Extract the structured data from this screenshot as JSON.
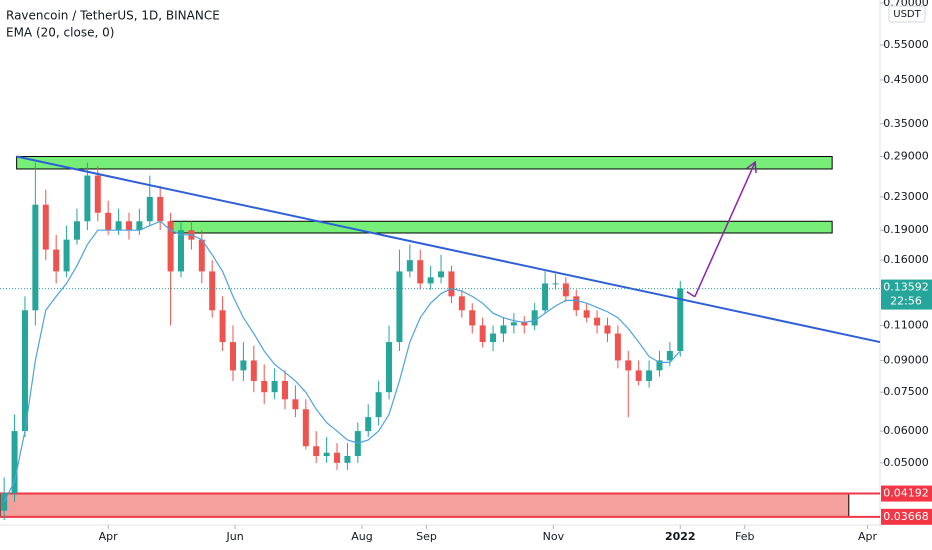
{
  "chart_data": {
    "type": "candlestick",
    "title": "Ravencoin / TetherUS, 1D, BINANCE",
    "up_color": "#26a69a",
    "down_color": "#ef5350",
    "x": [
      40,
      45,
      50,
      55,
      60,
      65,
      70,
      75,
      80,
      85,
      90,
      95,
      100,
      105,
      110,
      115,
      120,
      125,
      130,
      135,
      140,
      145,
      150,
      155,
      160,
      165,
      170,
      175,
      180,
      185,
      190,
      195,
      200,
      205,
      210,
      215,
      220,
      225,
      230,
      235,
      240,
      245,
      250,
      255,
      260,
      265,
      270,
      275,
      280,
      285,
      290,
      295,
      300,
      305,
      310,
      315,
      320,
      325,
      330,
      335,
      340,
      345,
      350,
      355,
      360,
      365
    ],
    "open": [
      0.038,
      0.042,
      0.06,
      0.12,
      0.22,
      0.17,
      0.15,
      0.18,
      0.2,
      0.26,
      0.21,
      0.19,
      0.2,
      0.19,
      0.2,
      0.23,
      0.2,
      0.15,
      0.19,
      0.18,
      0.15,
      0.12,
      0.1,
      0.085,
      0.09,
      0.08,
      0.075,
      0.08,
      0.072,
      0.068,
      0.055,
      0.052,
      0.053,
      0.05,
      0.052,
      0.06,
      0.065,
      0.075,
      0.1,
      0.15,
      0.16,
      0.14,
      0.145,
      0.15,
      0.13,
      0.12,
      0.11,
      0.1,
      0.105,
      0.11,
      0.112,
      0.11,
      0.12,
      0.14,
      0.14,
      0.13,
      0.12,
      0.115,
      0.11,
      0.105,
      0.09,
      0.085,
      0.08,
      0.085,
      0.09,
      0.095
    ],
    "high": [
      0.046,
      0.066,
      0.13,
      0.28,
      0.24,
      0.185,
      0.195,
      0.215,
      0.28,
      0.275,
      0.225,
      0.215,
      0.21,
      0.215,
      0.26,
      0.245,
      0.21,
      0.2,
      0.2,
      0.19,
      0.16,
      0.13,
      0.11,
      0.1,
      0.098,
      0.088,
      0.086,
      0.085,
      0.078,
      0.072,
      0.06,
      0.058,
      0.056,
      0.056,
      0.063,
      0.07,
      0.08,
      0.11,
      0.17,
      0.175,
      0.17,
      0.155,
      0.165,
      0.155,
      0.135,
      0.125,
      0.115,
      0.11,
      0.115,
      0.118,
      0.116,
      0.125,
      0.15,
      0.148,
      0.145,
      0.135,
      0.125,
      0.12,
      0.115,
      0.11,
      0.095,
      0.09,
      0.09,
      0.095,
      0.1,
      0.142
    ],
    "low": [
      0.036,
      0.04,
      0.058,
      0.11,
      0.16,
      0.14,
      0.145,
      0.175,
      0.19,
      0.2,
      0.185,
      0.185,
      0.18,
      0.185,
      0.195,
      0.19,
      0.11,
      0.145,
      0.17,
      0.14,
      0.115,
      0.095,
      0.08,
      0.08,
      0.075,
      0.07,
      0.072,
      0.068,
      0.065,
      0.054,
      0.05,
      0.05,
      0.048,
      0.048,
      0.05,
      0.058,
      0.062,
      0.072,
      0.095,
      0.145,
      0.135,
      0.135,
      0.14,
      0.125,
      0.115,
      0.105,
      0.097,
      0.095,
      0.1,
      0.105,
      0.105,
      0.107,
      0.118,
      0.135,
      0.126,
      0.116,
      0.112,
      0.105,
      0.1,
      0.086,
      0.065,
      0.078,
      0.077,
      0.082,
      0.087,
      0.092
    ],
    "close": [
      0.042,
      0.06,
      0.12,
      0.22,
      0.17,
      0.15,
      0.18,
      0.2,
      0.26,
      0.21,
      0.19,
      0.2,
      0.19,
      0.2,
      0.23,
      0.2,
      0.15,
      0.19,
      0.18,
      0.15,
      0.12,
      0.1,
      0.085,
      0.09,
      0.08,
      0.075,
      0.08,
      0.072,
      0.068,
      0.055,
      0.052,
      0.053,
      0.05,
      0.052,
      0.06,
      0.065,
      0.075,
      0.1,
      0.15,
      0.16,
      0.14,
      0.145,
      0.15,
      0.13,
      0.12,
      0.11,
      0.1,
      0.105,
      0.11,
      0.112,
      0.11,
      0.12,
      0.14,
      0.14,
      0.13,
      0.12,
      0.115,
      0.11,
      0.105,
      0.09,
      0.085,
      0.08,
      0.085,
      0.09,
      0.095,
      0.136
    ],
    "ema": {
      "name": "EMA (20, close, 0)",
      "color": "#4ea3dc",
      "values": [
        0.04,
        0.045,
        0.06,
        0.09,
        0.12,
        0.13,
        0.14,
        0.155,
        0.175,
        0.19,
        0.19,
        0.19,
        0.19,
        0.19,
        0.195,
        0.2,
        0.19,
        0.185,
        0.185,
        0.18,
        0.165,
        0.15,
        0.13,
        0.115,
        0.105,
        0.095,
        0.088,
        0.084,
        0.08,
        0.075,
        0.068,
        0.063,
        0.06,
        0.057,
        0.056,
        0.057,
        0.06,
        0.066,
        0.08,
        0.1,
        0.115,
        0.125,
        0.132,
        0.136,
        0.134,
        0.13,
        0.125,
        0.118,
        0.115,
        0.113,
        0.112,
        0.113,
        0.118,
        0.123,
        0.127,
        0.127,
        0.125,
        0.122,
        0.119,
        0.115,
        0.108,
        0.1,
        0.092,
        0.089,
        0.089,
        0.095
      ]
    },
    "xlim": [
      38,
      461
    ],
    "xticks": [
      {
        "value": 90,
        "label": "Apr"
      },
      {
        "value": 151,
        "label": "Jun"
      },
      {
        "value": 212,
        "label": "Aug"
      },
      {
        "value": 243,
        "label": "Sep"
      },
      {
        "value": 304,
        "label": "Nov"
      },
      {
        "value": 365,
        "label": "2022"
      },
      {
        "value": 396,
        "label": "Feb"
      },
      {
        "value": 455,
        "label": "Apr"
      }
    ],
    "ylim": [
      0.035,
      0.712
    ],
    "log_scale": true,
    "y_unit": "USDT",
    "yticks": [
      {
        "value": 0.7,
        "label": "0.70000"
      },
      {
        "value": 0.55,
        "label": "0.55000"
      },
      {
        "value": 0.45,
        "label": "0.45000"
      },
      {
        "value": 0.35,
        "label": "0.35000"
      },
      {
        "value": 0.29,
        "label": "0.29000"
      },
      {
        "value": 0.23,
        "label": "0.23000"
      },
      {
        "value": 0.19,
        "label": "0.19000"
      },
      {
        "value": 0.16,
        "label": "0.16000"
      },
      {
        "value": 0.11,
        "label": "0.11000"
      },
      {
        "value": 0.09,
        "label": "0.09000"
      },
      {
        "value": 0.075,
        "label": "0.07500"
      },
      {
        "value": 0.06,
        "label": "0.06000"
      },
      {
        "value": 0.05,
        "label": "0.05000"
      }
    ],
    "grid": false,
    "zones": [
      {
        "x": [
          46,
          438
        ],
        "y": [
          0.27,
          0.29
        ],
        "color": "#77ee77"
      },
      {
        "x": [
          120,
          438
        ],
        "y": [
          0.187,
          0.2
        ],
        "color": "#77ee77"
      },
      {
        "x": [
          38,
          446
        ],
        "y": [
          0.03668,
          0.04192
        ],
        "color": "#f4a09c"
      }
    ],
    "trendline": {
      "x": [
        46,
        461
      ],
      "y": [
        0.29,
        0.1
      ],
      "color": "#2f5fd8"
    },
    "arrow": {
      "x": [
        372,
        401
      ],
      "y": [
        0.1297,
        0.281
      ],
      "color": "#8e24aa"
    },
    "levels": [
      0.04192,
      0.03668
    ],
    "level_color": "#f23645",
    "last_price": 0.13592,
    "countdown": "22:56"
  }
}
